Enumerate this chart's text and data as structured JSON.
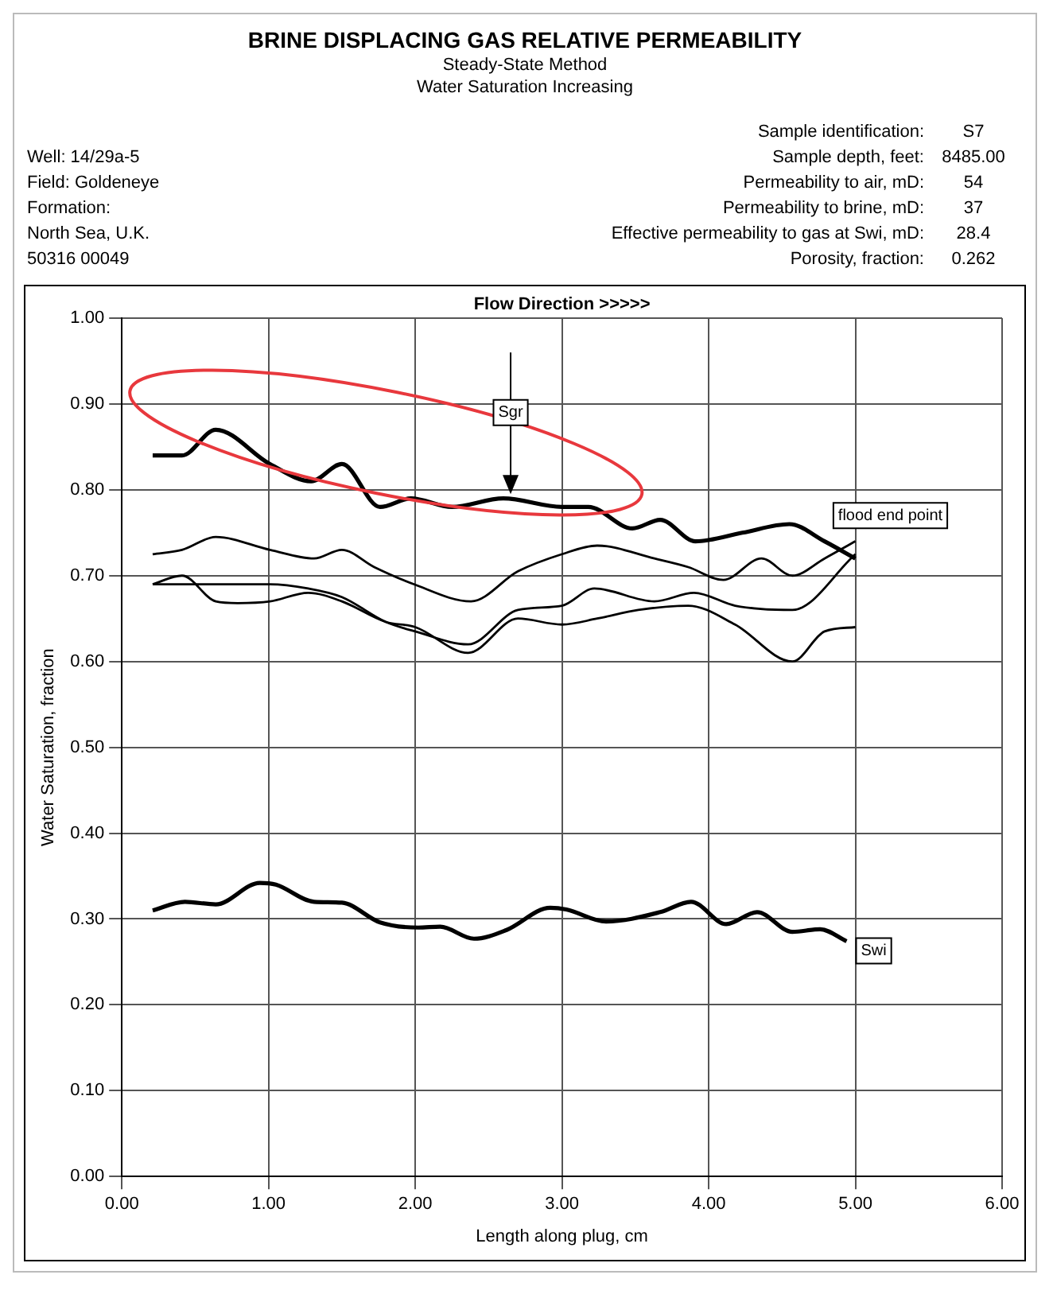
{
  "chart_data": {
    "type": "line",
    "title": "BRINE DISPLACING GAS RELATIVE PERMEABILITY",
    "subtitle": "Steady-State Method\nWater Saturation Increasing",
    "xlabel": "Length along plug, cm",
    "ylabel": "Water Saturation, fraction",
    "xlim": [
      0,
      6
    ],
    "xticks": [
      {
        "value": 0,
        "label": "0.00"
      },
      {
        "value": 1,
        "label": "1.00"
      },
      {
        "value": 2,
        "label": "2.00"
      },
      {
        "value": 3,
        "label": "3.00"
      },
      {
        "value": 4,
        "label": "4.00"
      },
      {
        "value": 5,
        "label": "5.00"
      },
      {
        "value": 6,
        "label": "6.00"
      }
    ],
    "ylim": [
      0,
      1
    ],
    "yticks": [
      {
        "value": 0,
        "label": "0.00"
      },
      {
        "value": 0.1,
        "label": "0.10"
      },
      {
        "value": 0.2,
        "label": "0.20"
      },
      {
        "value": 0.3,
        "label": "0.30"
      },
      {
        "value": 0.4,
        "label": "0.40"
      },
      {
        "value": 0.5,
        "label": "0.50"
      },
      {
        "value": 0.6,
        "label": "0.60"
      },
      {
        "value": 0.7,
        "label": "0.70"
      },
      {
        "value": 0.8,
        "label": "0.80"
      },
      {
        "value": 0.9,
        "label": "0.90"
      },
      {
        "value": 1,
        "label": "1.00"
      }
    ],
    "grid": true,
    "legend": false,
    "marker": "none",
    "line_style": "solid",
    "series": [
      {
        "color": "#000000",
        "x": [
          0.21,
          0.41,
          0.64,
          1.01,
          1.29,
          1.5,
          1.76,
          1.97,
          2.25,
          2.6,
          3.0,
          3.18,
          3.48,
          3.67,
          3.91,
          4.23,
          4.55,
          4.79,
          5.0
        ],
        "values": [
          0.84,
          0.84,
          0.87,
          0.83,
          0.81,
          0.83,
          0.78,
          0.79,
          0.78,
          0.79,
          0.78,
          0.78,
          0.755,
          0.765,
          0.74,
          0.75,
          0.76,
          0.74,
          0.72
        ]
      },
      {
        "color": "#000000",
        "x": [
          0.21,
          0.41,
          0.64,
          1.01,
          1.31,
          1.5,
          1.72,
          1.99,
          2.38,
          2.7,
          3.0,
          3.24,
          3.63,
          3.86,
          4.1,
          4.36,
          4.57,
          4.79,
          5.0
        ],
        "values": [
          0.725,
          0.73,
          0.745,
          0.73,
          0.72,
          0.73,
          0.71,
          0.69,
          0.67,
          0.705,
          0.725,
          0.735,
          0.72,
          0.71,
          0.695,
          0.72,
          0.7,
          0.72,
          0.74
        ]
      },
      {
        "color": "#000000",
        "x": [
          0.21,
          0.64,
          1.01,
          1.27,
          1.5,
          1.8,
          2.0,
          2.36,
          2.7,
          3.0,
          3.22,
          3.63,
          3.9,
          4.18,
          4.57,
          5.0
        ],
        "values": [
          0.69,
          0.69,
          0.69,
          0.685,
          0.675,
          0.646,
          0.635,
          0.62,
          0.66,
          0.665,
          0.685,
          0.67,
          0.68,
          0.665,
          0.66,
          0.725
        ]
      },
      {
        "color": "#000000",
        "x": [
          0.21,
          0.41,
          0.64,
          0.79,
          1.01,
          1.27,
          1.5,
          1.8,
          2.0,
          2.36,
          2.7,
          3.0,
          3.24,
          3.52,
          3.86,
          4.18,
          4.57,
          4.79,
          5.0
        ],
        "values": [
          0.69,
          0.7,
          0.67,
          0.668,
          0.67,
          0.68,
          0.67,
          0.646,
          0.64,
          0.61,
          0.65,
          0.643,
          0.65,
          0.66,
          0.665,
          0.643,
          0.6,
          0.635,
          0.64
        ]
      },
      {
        "color": "#000000",
        "x": [
          0.21,
          0.43,
          0.64,
          0.94,
          1.05,
          1.31,
          1.5,
          1.76,
          2.02,
          2.17,
          2.4,
          2.62,
          2.92,
          3.03,
          3.3,
          3.67,
          3.88,
          4.12,
          4.33,
          4.57,
          4.76,
          4.94
        ],
        "values": [
          0.31,
          0.32,
          0.317,
          0.342,
          0.34,
          0.32,
          0.319,
          0.296,
          0.29,
          0.291,
          0.277,
          0.287,
          0.313,
          0.311,
          0.297,
          0.308,
          0.32,
          0.294,
          0.308,
          0.285,
          0.288,
          0.274
        ]
      }
    ],
    "annotations": [
      "Flow Direction >>>>>",
      "flood end point",
      "Well: 14/29a-5",
      "Field: Goldeneye",
      "Formation:",
      "North Sea, U.K.",
      "50316 00049",
      "Sample identification:",
      "S7",
      "Sample depth, feet:",
      "8485.00",
      "Permeability to air, mD:",
      "54",
      "Permeability to brine, mD:",
      "37",
      "Effective permeability to gas at Swi, mD:",
      "28.4",
      "Porosity, fraction:",
      "0.262",
      {
        "text": "Sgr",
        "x": 2.65,
        "y": 0.89
      },
      {
        "text": "Swi",
        "x": 4.94,
        "y": 0.274
      }
    ]
  }
}
